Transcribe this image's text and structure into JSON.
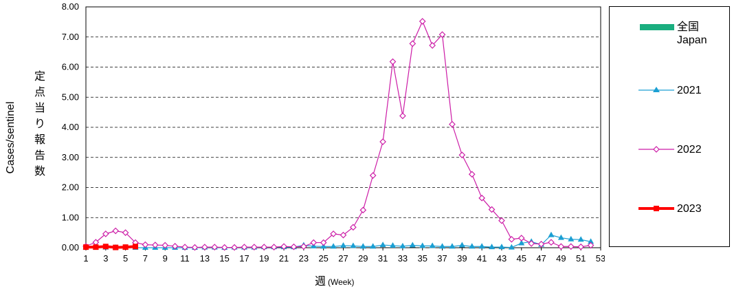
{
  "chart_data": {
    "type": "line",
    "title": "",
    "ylabel": "Cases/sentinel",
    "ylabel_ja": "定点当り報告数",
    "xlabel": "週",
    "xlabel_sub": "(Week)",
    "ylim": [
      0,
      8
    ],
    "yticks": [
      "0.00",
      "1.00",
      "2.00",
      "3.00",
      "4.00",
      "5.00",
      "6.00",
      "7.00",
      "8.00"
    ],
    "xlim": [
      1,
      53
    ],
    "xticks": [
      1,
      3,
      5,
      7,
      9,
      11,
      13,
      15,
      17,
      19,
      21,
      23,
      25,
      27,
      29,
      31,
      33,
      35,
      37,
      39,
      41,
      43,
      45,
      47,
      49,
      51,
      53
    ],
    "grid": "horizontal",
    "legend_placement": "right",
    "series": [
      {
        "name": "全国 Japan",
        "name_ja": "全国",
        "name_en": "Japan",
        "color": "#1aae7f",
        "marker": "none",
        "values": []
      },
      {
        "name": "2021",
        "color": "#1b9fd3",
        "marker": "triangle",
        "x": [
          1,
          2,
          3,
          4,
          5,
          6,
          7,
          8,
          9,
          10,
          11,
          12,
          13,
          14,
          15,
          16,
          17,
          18,
          19,
          20,
          21,
          22,
          23,
          24,
          25,
          26,
          27,
          28,
          29,
          30,
          31,
          32,
          33,
          34,
          35,
          36,
          37,
          38,
          39,
          40,
          41,
          42,
          43,
          44,
          45,
          46,
          47,
          48,
          49,
          50,
          51,
          52
        ],
        "values": [
          0.0,
          0.0,
          0.01,
          0.0,
          0.0,
          0.0,
          0.0,
          0.0,
          0.0,
          0.0,
          0.0,
          0.0,
          0.01,
          0.01,
          0.0,
          0.01,
          0.01,
          0.01,
          0.02,
          0.02,
          0.02,
          0.02,
          0.08,
          0.05,
          0.04,
          0.04,
          0.07,
          0.06,
          0.04,
          0.04,
          0.09,
          0.07,
          0.05,
          0.08,
          0.06,
          0.06,
          0.04,
          0.04,
          0.08,
          0.04,
          0.04,
          0.02,
          0.02,
          0.01,
          0.15,
          0.2,
          0.1,
          0.42,
          0.33,
          0.28,
          0.27,
          0.2
        ]
      },
      {
        "name": "2022",
        "color": "#cc1ba6",
        "marker": "diamond-open",
        "x": [
          1,
          2,
          3,
          4,
          5,
          6,
          7,
          8,
          9,
          10,
          11,
          12,
          13,
          14,
          15,
          16,
          17,
          18,
          19,
          20,
          21,
          22,
          23,
          24,
          25,
          26,
          27,
          28,
          29,
          30,
          31,
          32,
          33,
          34,
          35,
          36,
          37,
          38,
          39,
          40,
          41,
          42,
          43,
          44,
          45,
          46,
          47,
          48,
          49,
          50,
          51,
          52
        ],
        "values": [
          0.05,
          0.18,
          0.46,
          0.56,
          0.5,
          0.17,
          0.1,
          0.09,
          0.08,
          0.05,
          0.02,
          0.01,
          0.02,
          0.02,
          0.01,
          0.01,
          0.02,
          0.02,
          0.02,
          0.02,
          0.04,
          0.03,
          0.04,
          0.17,
          0.17,
          0.46,
          0.42,
          0.68,
          1.25,
          2.4,
          3.52,
          6.18,
          4.38,
          6.78,
          7.52,
          6.72,
          7.08,
          4.1,
          3.08,
          2.44,
          1.65,
          1.27,
          0.9,
          0.28,
          0.32,
          0.14,
          0.12,
          0.18,
          0.04,
          0.04,
          0.03,
          0.08
        ]
      },
      {
        "name": "2023",
        "color": "#ff0000",
        "marker": "square",
        "x": [
          1,
          2,
          3,
          4,
          5,
          6
        ],
        "values": [
          0.02,
          0.02,
          0.04,
          0.01,
          0.02,
          0.04
        ]
      }
    ]
  }
}
